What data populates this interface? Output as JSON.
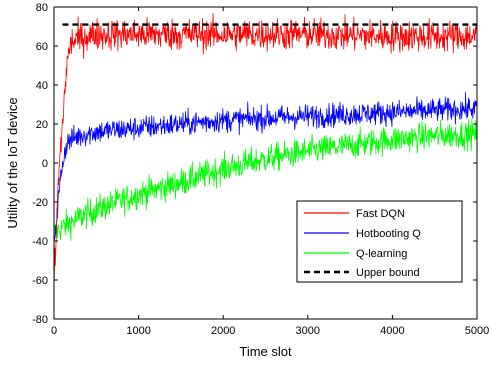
{
  "chart_data": {
    "type": "line",
    "title": "",
    "xlabel": "Time slot",
    "ylabel": "Utility of the IoT device",
    "xlim": [
      0,
      5000
    ],
    "ylim": [
      -80,
      80
    ],
    "xticks": [
      0,
      1000,
      2000,
      3000,
      4000,
      5000
    ],
    "yticks": [
      -80,
      -60,
      -40,
      -20,
      0,
      20,
      40,
      60,
      80
    ],
    "grid": false,
    "legend_position": "lower-right",
    "series": [
      {
        "name": "Fast DQN",
        "color": "#ff0000",
        "style": "solid",
        "trend_x": [
          0,
          20,
          50,
          100,
          150,
          200,
          300,
          500,
          1000,
          2000,
          3000,
          4000,
          5000
        ],
        "trend_y": [
          -60,
          -45,
          -10,
          20,
          50,
          62,
          64,
          66,
          66,
          66,
          66,
          65,
          65
        ],
        "noise": 4
      },
      {
        "name": "Hotbooting Q",
        "color": "#0000ff",
        "style": "solid",
        "trend_x": [
          0,
          30,
          60,
          100,
          150,
          200,
          300,
          500,
          1000,
          1500,
          2000,
          3000,
          4000,
          5000
        ],
        "trend_y": [
          -38,
          -30,
          -15,
          0,
          10,
          12,
          14,
          16,
          18,
          20,
          22,
          24,
          26,
          28
        ],
        "noise": 3
      },
      {
        "name": "Q-learning",
        "color": "#00ff00",
        "style": "solid",
        "trend_x": [
          0,
          100,
          300,
          500,
          1000,
          1500,
          2000,
          2500,
          3000,
          3500,
          4000,
          4500,
          5000
        ],
        "trend_y": [
          -36,
          -33,
          -28,
          -24,
          -16,
          -10,
          -3,
          2,
          6,
          9,
          12,
          14,
          15
        ],
        "noise": 3.5
      },
      {
        "name": "Upper bound",
        "color": "#000000",
        "style": "dashed",
        "x": [
          100,
          5000
        ],
        "y": [
          71,
          71
        ]
      }
    ]
  }
}
